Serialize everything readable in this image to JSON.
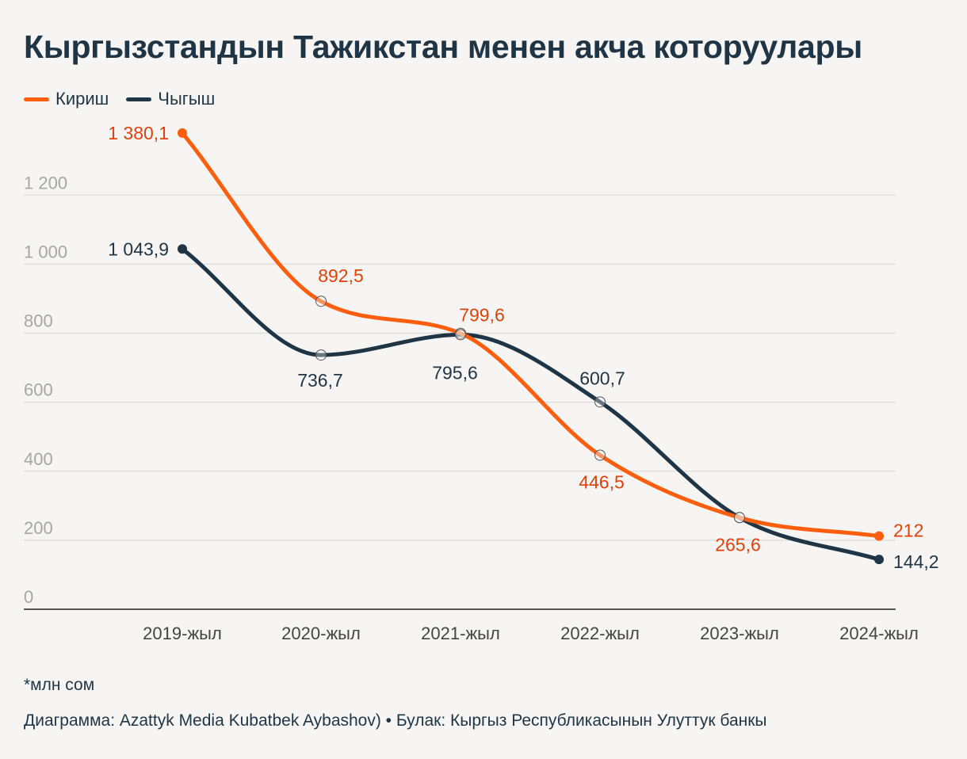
{
  "title": "Кыргызстандын Тажикстан менен акча которуулары",
  "legend": [
    {
      "label": "Кириш",
      "color": "#ff5e0e"
    },
    {
      "label": "Чыгыш",
      "color": "#1f3546"
    }
  ],
  "chart_data": {
    "type": "line",
    "categories": [
      "2019-жыл",
      "2020-жыл",
      "2021-жыл",
      "2022-жыл",
      "2023-жыл",
      "2024-жыл"
    ],
    "series": [
      {
        "name": "Кириш",
        "color": "#ff5e0e",
        "label_color": "#e0420a",
        "values": [
          1380.1,
          892.5,
          799.6,
          446.5,
          265.6,
          212
        ],
        "labels": [
          "1 380,1",
          "892,5",
          "799,6",
          "446,5",
          "265,6",
          "212"
        ]
      },
      {
        "name": "Чыгыш",
        "color": "#1f3546",
        "label_color": "#1f3546",
        "values": [
          1043.9,
          736.7,
          795.6,
          600.7,
          265.6,
          144.2
        ],
        "labels": [
          "1 043,9",
          "736,7",
          "795,6",
          "600,7",
          "",
          "144,2"
        ]
      }
    ],
    "yticks": [
      0,
      200,
      400,
      600,
      800,
      1000,
      1200
    ],
    "ytick_labels": [
      "0",
      "200",
      "400",
      "600",
      "800",
      "1 000",
      "1 200"
    ],
    "ylim": [
      0,
      1400
    ],
    "grid": true
  },
  "footnote": "*млн сом",
  "source": "Диаграмма: Azattyk Media Kubatbek Aybashov) • Булак: Кыргыз Республикасынын Улуттук банкы"
}
